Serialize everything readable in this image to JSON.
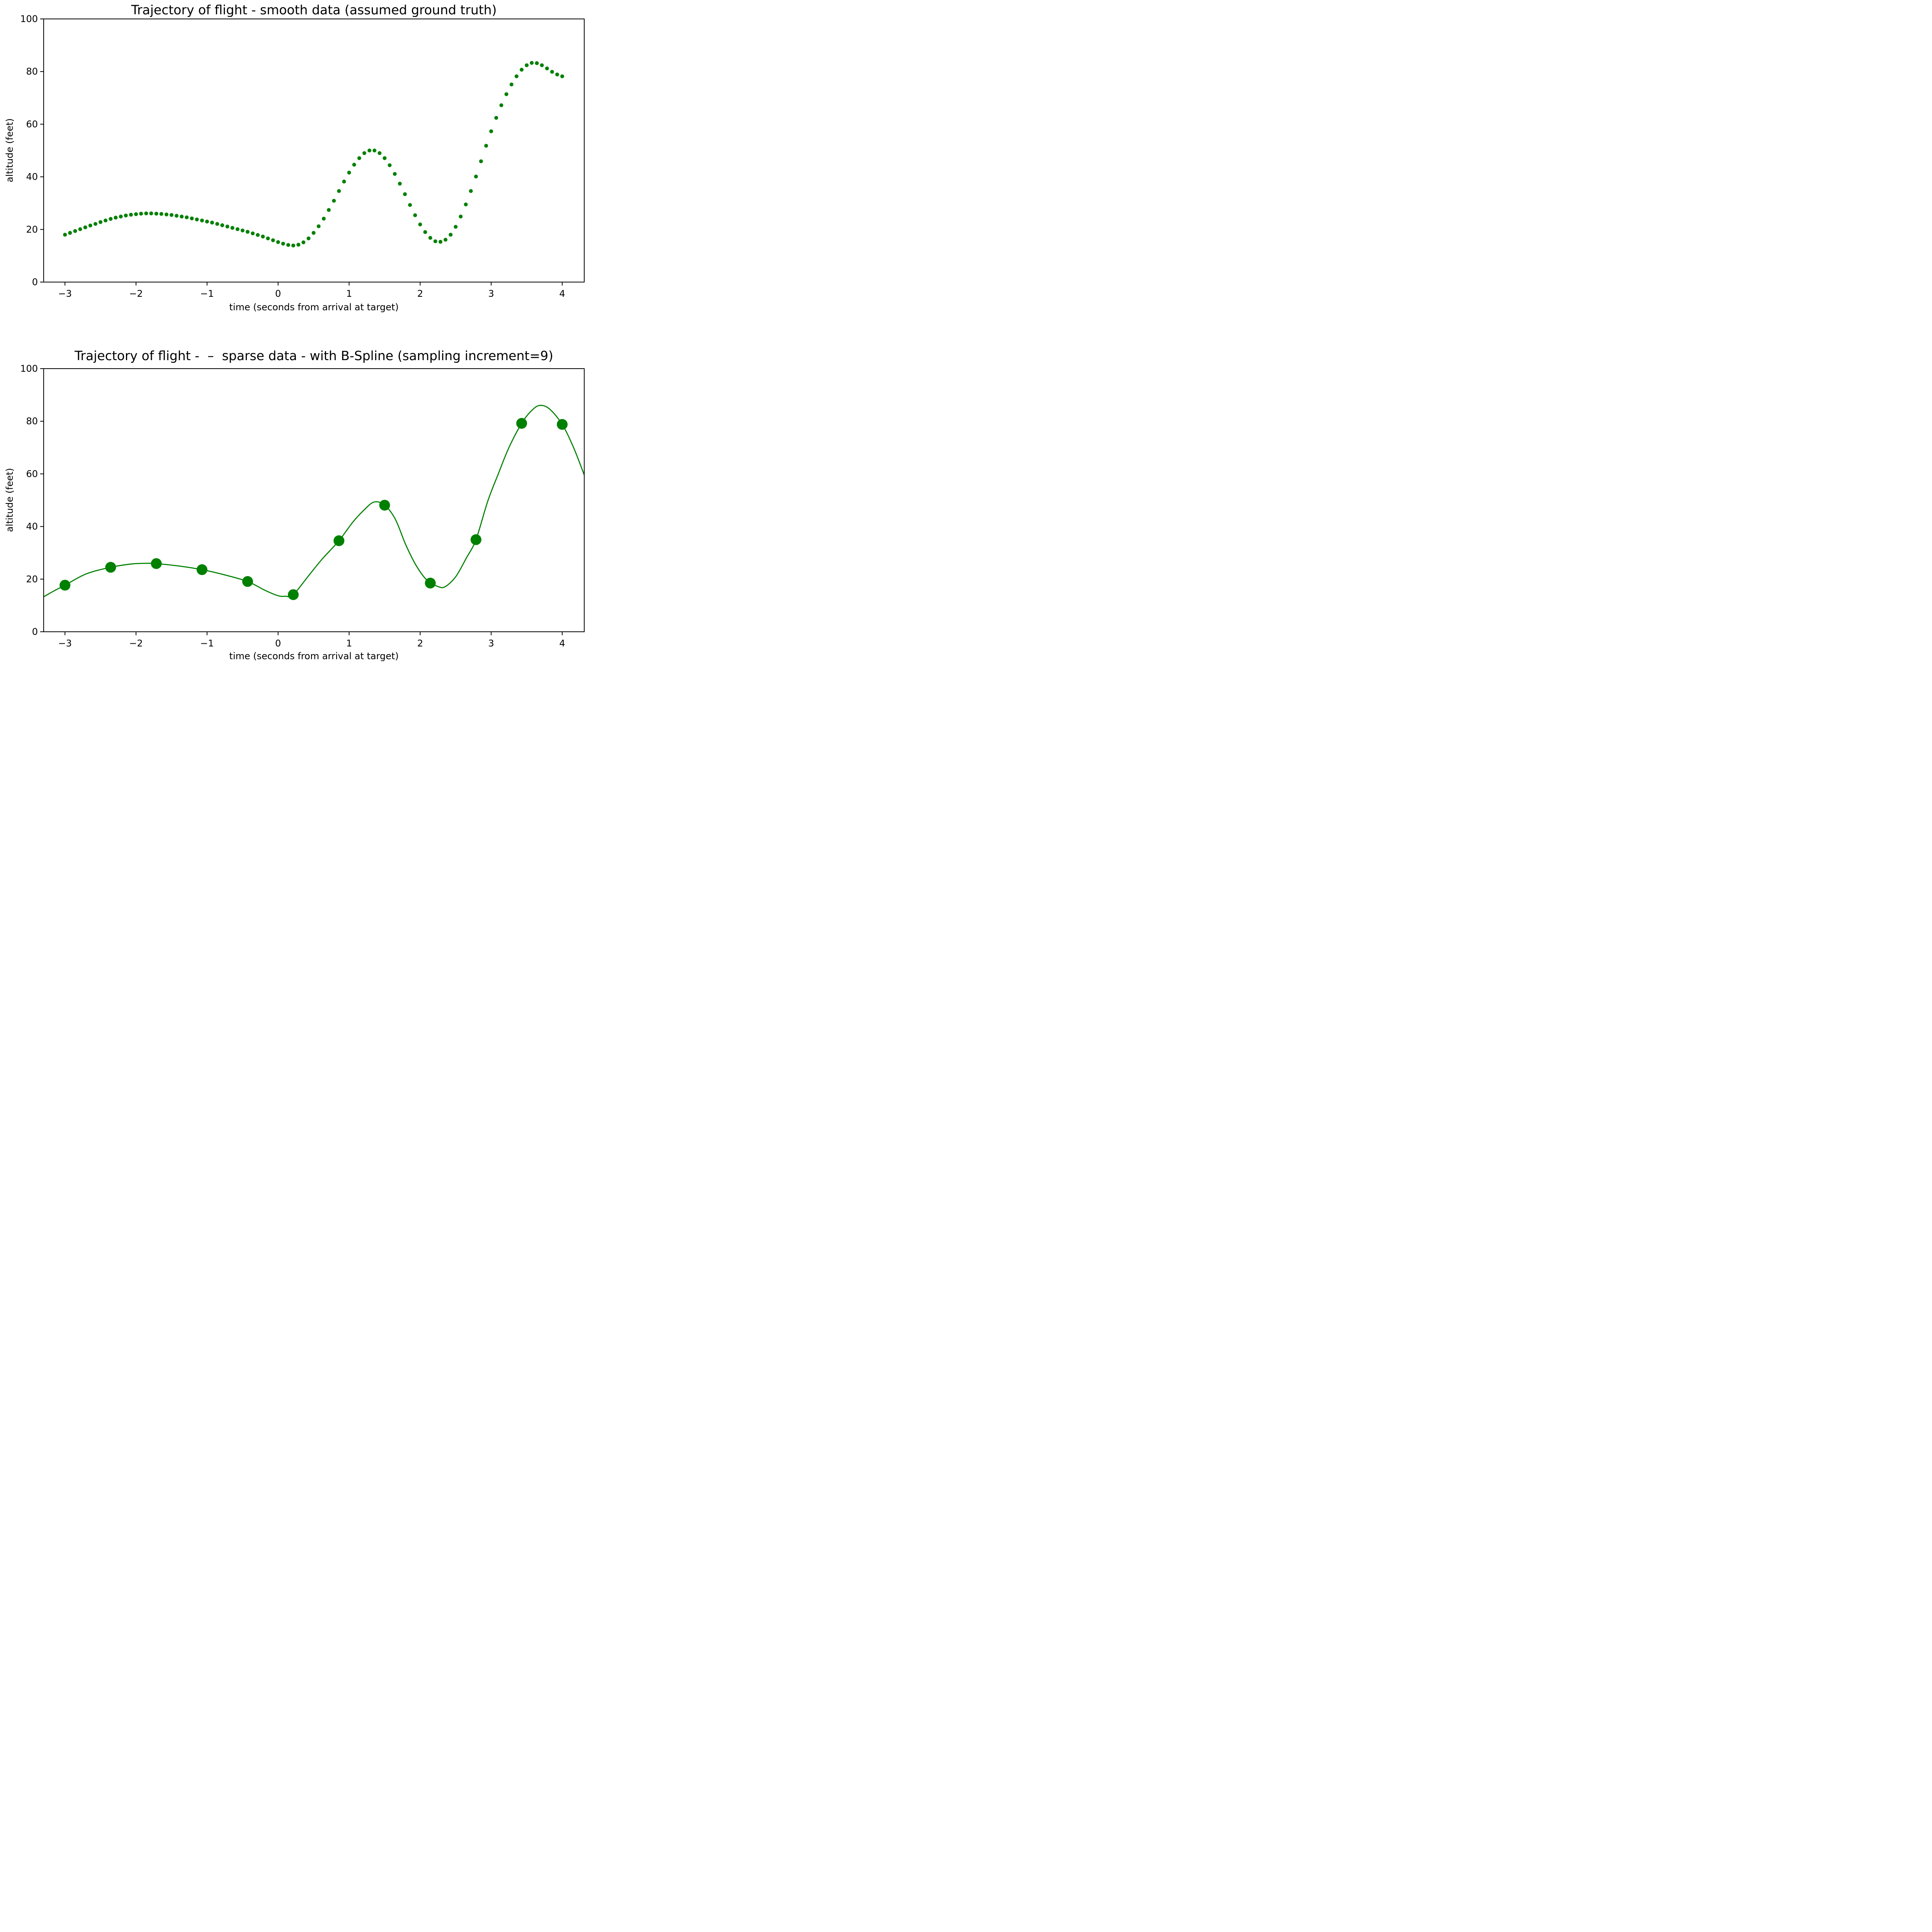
{
  "page": {
    "background": "#ffffff"
  },
  "colors": {
    "series_green": "#008000",
    "axes_black": "#000000",
    "text_black": "#000000"
  },
  "chart_data": [
    {
      "type": "scatter",
      "title": "Trajectory of flight - smooth data (assumed ground truth)",
      "xlabel": "time (seconds from arrival at target)",
      "ylabel": "altitude (feet)",
      "xlim": [
        -3.3,
        4.31
      ],
      "ylim": [
        0,
        100
      ],
      "xticks": [
        -3,
        -2,
        -1,
        0,
        1,
        2,
        3,
        4
      ],
      "yticks": [
        0,
        20,
        40,
        60,
        80,
        100
      ],
      "grid": false,
      "legend": "none",
      "marker_diameter_px": 10,
      "x": [
        -3.0,
        -2.929,
        -2.857,
        -2.786,
        -2.714,
        -2.643,
        -2.571,
        -2.5,
        -2.429,
        -2.357,
        -2.286,
        -2.214,
        -2.143,
        -2.071,
        -2.0,
        -1.929,
        -1.857,
        -1.786,
        -1.714,
        -1.643,
        -1.571,
        -1.5,
        -1.429,
        -1.357,
        -1.286,
        -1.214,
        -1.143,
        -1.071,
        -1.0,
        -0.929,
        -0.857,
        -0.786,
        -0.714,
        -0.643,
        -0.571,
        -0.5,
        -0.429,
        -0.357,
        -0.286,
        -0.214,
        -0.143,
        -0.071,
        0.0,
        0.071,
        0.143,
        0.214,
        0.286,
        0.357,
        0.429,
        0.5,
        0.571,
        0.643,
        0.714,
        0.786,
        0.857,
        0.929,
        1.0,
        1.071,
        1.143,
        1.214,
        1.286,
        1.357,
        1.429,
        1.5,
        1.571,
        1.643,
        1.714,
        1.786,
        1.857,
        1.929,
        2.0,
        2.071,
        2.143,
        2.214,
        2.286,
        2.357,
        2.429,
        2.5,
        2.571,
        2.643,
        2.714,
        2.786,
        2.857,
        2.929,
        3.0,
        3.071,
        3.143,
        3.214,
        3.286,
        3.357,
        3.429,
        3.5,
        3.571,
        3.643,
        3.714,
        3.786,
        3.857,
        3.929,
        4.0
      ],
      "y": [
        18.0,
        18.7,
        19.4,
        20.1,
        20.8,
        21.5,
        22.1,
        22.8,
        23.4,
        24.0,
        24.5,
        24.9,
        25.3,
        25.6,
        25.8,
        26.0,
        26.1,
        26.1,
        26.0,
        25.9,
        25.7,
        25.5,
        25.2,
        24.9,
        24.6,
        24.2,
        23.8,
        23.4,
        23.0,
        22.6,
        22.1,
        21.6,
        21.1,
        20.6,
        20.1,
        19.6,
        19.1,
        18.5,
        17.9,
        17.3,
        16.6,
        15.9,
        15.2,
        14.6,
        14.1,
        13.9,
        14.2,
        15.1,
        16.6,
        18.7,
        21.2,
        24.1,
        27.4,
        30.9,
        34.6,
        38.2,
        41.6,
        44.6,
        47.1,
        49.0,
        50.0,
        50.0,
        49.0,
        47.1,
        44.4,
        41.1,
        37.4,
        33.4,
        29.3,
        25.4,
        21.9,
        19.0,
        16.8,
        15.5,
        15.3,
        16.1,
        18.0,
        21.0,
        24.9,
        29.5,
        34.6,
        40.1,
        45.9,
        51.8,
        57.3,
        62.4,
        67.2,
        71.4,
        75.1,
        78.2,
        80.7,
        82.4,
        83.3,
        83.2,
        82.4,
        81.2,
        79.9,
        78.9,
        78.2
      ]
    },
    {
      "type": "line+scatter",
      "title": "Trajectory of flight -  –  sparse data - with B-Spline (sampling increment=9)",
      "xlabel": "time (seconds from arrival at target)",
      "ylabel": "altitude (feet)",
      "xlim": [
        -3.3,
        4.31
      ],
      "ylim": [
        0,
        100
      ],
      "xticks": [
        -3,
        -2,
        -1,
        0,
        1,
        2,
        3,
        4
      ],
      "yticks": [
        0,
        20,
        40,
        60,
        80,
        100
      ],
      "grid": false,
      "legend": "none",
      "marker_diameter_px": 28,
      "sampling_increment": 9,
      "points": {
        "x": [
          -3.0,
          -2.357,
          -1.714,
          -1.071,
          -0.429,
          0.214,
          0.857,
          1.5,
          2.143,
          2.786,
          3.429,
          4.0
        ],
        "y": [
          17.7,
          24.5,
          25.9,
          23.6,
          19.1,
          14.1,
          34.6,
          48.1,
          18.5,
          35.0,
          79.2,
          78.8
        ]
      },
      "spline": {
        "x": [
          -3.3,
          -3.15,
          -3.0,
          -2.7,
          -2.357,
          -2.05,
          -1.85,
          -1.714,
          -1.4,
          -1.071,
          -0.75,
          -0.429,
          -0.18,
          0.0,
          0.1,
          0.214,
          0.45,
          0.62,
          0.857,
          1.05,
          1.2,
          1.35,
          1.5,
          1.65,
          1.8,
          1.95,
          2.1,
          2.25,
          2.35,
          2.5,
          2.65,
          2.786,
          2.95,
          3.1,
          3.25,
          3.429,
          3.56,
          3.68,
          3.82,
          4.0,
          4.16,
          4.31
        ],
        "y": [
          13.3,
          15.6,
          17.7,
          22.0,
          24.5,
          25.8,
          26.0,
          25.9,
          25.0,
          23.6,
          21.6,
          19.1,
          15.7,
          13.7,
          13.5,
          14.1,
          22.0,
          27.6,
          34.6,
          41.6,
          46.0,
          49.3,
          48.1,
          42.8,
          32.9,
          24.9,
          19.5,
          17.2,
          17.1,
          20.9,
          28.0,
          35.0,
          49.5,
          60.0,
          70.0,
          79.2,
          83.8,
          86.0,
          84.7,
          78.8,
          70.0,
          59.6
        ]
      }
    }
  ]
}
